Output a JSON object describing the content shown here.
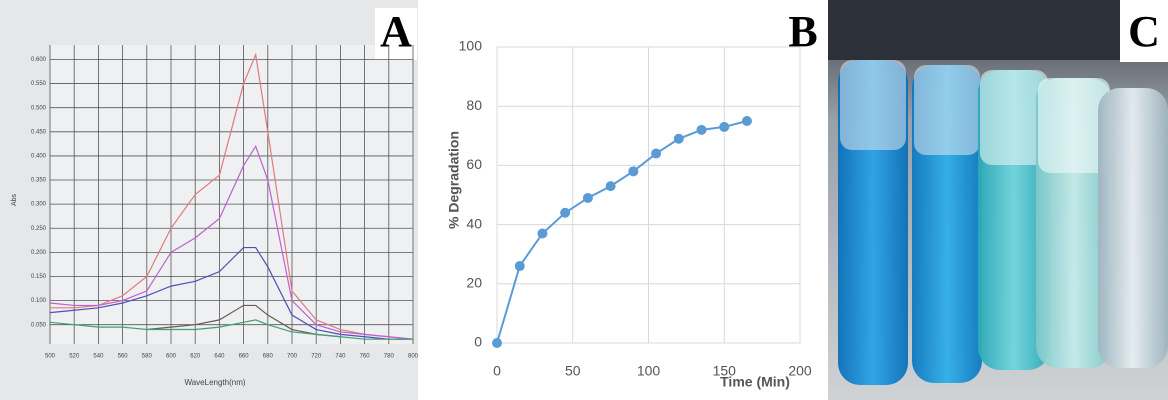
{
  "chart_data": [
    {
      "type": "line",
      "panel_label": "A",
      "x_label": "WaveLength(nm)",
      "y_label": "Abs",
      "x": [
        500,
        520,
        540,
        560,
        580,
        600,
        620,
        640,
        660,
        670,
        680,
        700,
        720,
        740,
        760,
        780,
        800
      ],
      "series": [
        {
          "color": "#e07a7a",
          "values": [
            0.085,
            0.085,
            0.09,
            0.11,
            0.15,
            0.25,
            0.32,
            0.36,
            0.55,
            0.61,
            0.45,
            0.12,
            0.06,
            0.04,
            0.03,
            0.025,
            0.02
          ]
        },
        {
          "color": "#c060d0",
          "values": [
            0.095,
            0.09,
            0.09,
            0.1,
            0.12,
            0.2,
            0.23,
            0.27,
            0.38,
            0.42,
            0.35,
            0.1,
            0.05,
            0.035,
            0.03,
            0.025,
            0.02
          ]
        },
        {
          "color": "#5050b8",
          "values": [
            0.075,
            0.08,
            0.085,
            0.095,
            0.11,
            0.13,
            0.14,
            0.16,
            0.21,
            0.21,
            0.17,
            0.07,
            0.04,
            0.03,
            0.025,
            0.02,
            0.02
          ]
        },
        {
          "color": "#6a5a5a",
          "values": [
            null,
            null,
            null,
            null,
            0.04,
            0.045,
            0.05,
            0.06,
            0.09,
            0.09,
            0.07,
            0.04,
            0.03,
            0.025,
            null,
            null,
            null
          ]
        },
        {
          "color": "#40a070",
          "values": [
            0.055,
            0.05,
            0.045,
            0.045,
            0.04,
            0.04,
            0.04,
            0.045,
            0.055,
            0.06,
            0.05,
            0.035,
            0.03,
            0.025,
            0.02,
            0.02,
            0.02
          ]
        }
      ],
      "xlim": [
        500,
        800
      ],
      "xticks": [
        500,
        520,
        540,
        560,
        580,
        600,
        620,
        640,
        660,
        680,
        700,
        720,
        740,
        760,
        780,
        800
      ],
      "ylim": [
        0.01,
        0.63
      ],
      "yticks": [
        {
          "value": 0.05,
          "label": "0.050"
        },
        {
          "value": 0.1,
          "label": "0.100"
        },
        {
          "value": 0.15,
          "label": "0.150"
        },
        {
          "value": 0.2,
          "label": "0.200"
        },
        {
          "value": 0.25,
          "label": "0.250"
        },
        {
          "value": 0.3,
          "label": "0.300"
        },
        {
          "value": 0.35,
          "label": "0.350"
        },
        {
          "value": 0.4,
          "label": "0.400"
        },
        {
          "value": 0.45,
          "label": "0.450"
        },
        {
          "value": 0.5,
          "label": "0.500"
        },
        {
          "value": 0.55,
          "label": "0.550"
        },
        {
          "value": 0.6,
          "label": "0.600"
        }
      ],
      "grid": true
    },
    {
      "type": "line",
      "panel_label": "B",
      "x_label": "Time (Min)",
      "y_label": "% Degradation",
      "x": [
        0,
        15,
        30,
        45,
        60,
        75,
        90,
        105,
        120,
        135,
        150,
        165
      ],
      "series": [
        {
          "color": "#5b9bd5",
          "values": [
            0,
            26,
            37,
            44,
            49,
            53,
            58,
            64,
            69,
            72,
            73,
            75
          ]
        }
      ],
      "markers": true,
      "xlim": [
        0,
        200
      ],
      "xticks": [
        0,
        50,
        100,
        150,
        200
      ],
      "ylim": [
        0,
        100
      ],
      "yticks": [
        0,
        20,
        40,
        60,
        80,
        100
      ],
      "grid": true
    }
  ],
  "photo": {
    "panel_label": "C"
  }
}
